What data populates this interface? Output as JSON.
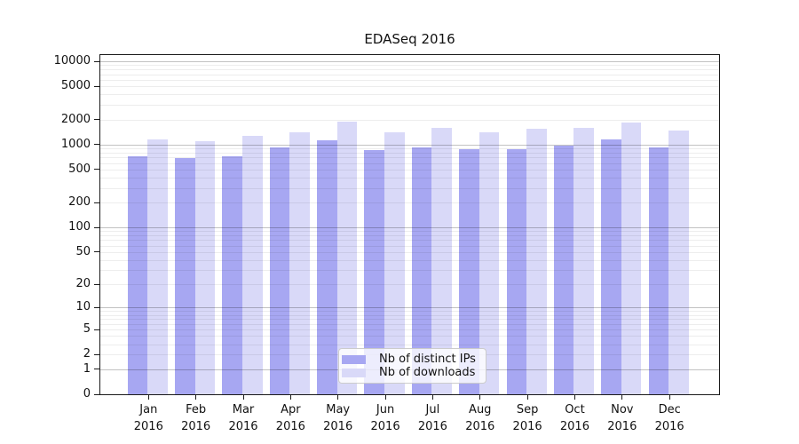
{
  "chart_data": {
    "type": "bar",
    "title": "EDASeq 2016",
    "categories": [
      "Jan 2016",
      "Feb 2016",
      "Mar 2016",
      "Apr 2016",
      "May 2016",
      "Jun 2016",
      "Jul 2016",
      "Aug 2016",
      "Sep 2016",
      "Oct 2016",
      "Nov 2016",
      "Dec 2016"
    ],
    "series": [
      {
        "name": "Nb of distinct IPs",
        "color": "#a7a7f2",
        "values": [
          720,
          690,
          715,
          915,
          1120,
          865,
          935,
          870,
          885,
          970,
          1140,
          935
        ]
      },
      {
        "name": "Nb of downloads",
        "color": "#d9d9f8",
        "values": [
          1140,
          1100,
          1270,
          1400,
          1890,
          1410,
          1600,
          1400,
          1530,
          1600,
          1860,
          1460
        ]
      }
    ],
    "xlabel": "",
    "ylabel": "",
    "y_scale": "log10(1+x)",
    "y_ticks": [
      0,
      1,
      2,
      5,
      10,
      20,
      50,
      100,
      200,
      500,
      1000,
      2000,
      5000,
      10000
    ],
    "ylim": [
      0,
      11900
    ],
    "grid": "both",
    "legend_position": "lower-center-inside",
    "colors": {
      "axis": "#1a1a1a",
      "grid_minor": "#ececec",
      "grid_major": "#bfbfbf",
      "background": "#ffffff"
    }
  }
}
